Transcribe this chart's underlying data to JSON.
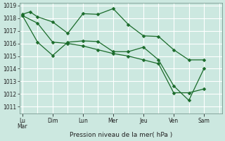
{
  "background_color": "#cce8e0",
  "grid_color": "#ffffff",
  "line_color": "#1a6b2a",
  "xlabel": "Pression niveau de la mer( hPa )",
  "ylim_min": 1011,
  "ylim_max": 1019,
  "yticks": [
    1011,
    1012,
    1013,
    1014,
    1015,
    1016,
    1017,
    1018,
    1019
  ],
  "xtick_labels": [
    "Lu\nMar",
    "Dim",
    "Lun",
    "Mer",
    "Jeu",
    "Ven",
    "Sam"
  ],
  "xtick_positions": [
    0,
    2,
    4,
    6,
    8,
    10,
    12
  ],
  "vline_positions": [
    1,
    3,
    5,
    7,
    9,
    11
  ],
  "series1_x": [
    0,
    0.5,
    1,
    2,
    3,
    4,
    5,
    6,
    7,
    8,
    9,
    10,
    11,
    12
  ],
  "series1_y": [
    1018.3,
    1018.5,
    1018.1,
    1017.7,
    1016.8,
    1018.35,
    1018.3,
    1018.75,
    1017.5,
    1016.6,
    1016.55,
    1015.5,
    1014.7,
    1014.7
  ],
  "series2_x": [
    0,
    1,
    2,
    3,
    4,
    5,
    6,
    7,
    8,
    9,
    10,
    11,
    12
  ],
  "series2_y": [
    1018.2,
    1016.1,
    1015.05,
    1016.1,
    1016.2,
    1016.15,
    1015.35,
    1015.35,
    1015.7,
    1014.7,
    1012.65,
    1011.5,
    1014.0
  ],
  "series3_x": [
    0,
    1,
    2,
    3,
    4,
    5,
    6,
    7,
    8,
    9,
    10,
    11,
    12
  ],
  "series3_y": [
    1018.2,
    1017.6,
    1016.1,
    1016.0,
    1015.8,
    1015.5,
    1015.2,
    1015.0,
    1014.7,
    1014.4,
    1012.1,
    1012.1,
    1012.4
  ],
  "xlim_min": -0.2,
  "xlim_max": 13.2,
  "marker_size": 2.5,
  "linewidth": 0.9,
  "ytick_fontsize": 5.5,
  "xtick_fontsize": 5.5,
  "xlabel_fontsize": 6.5
}
